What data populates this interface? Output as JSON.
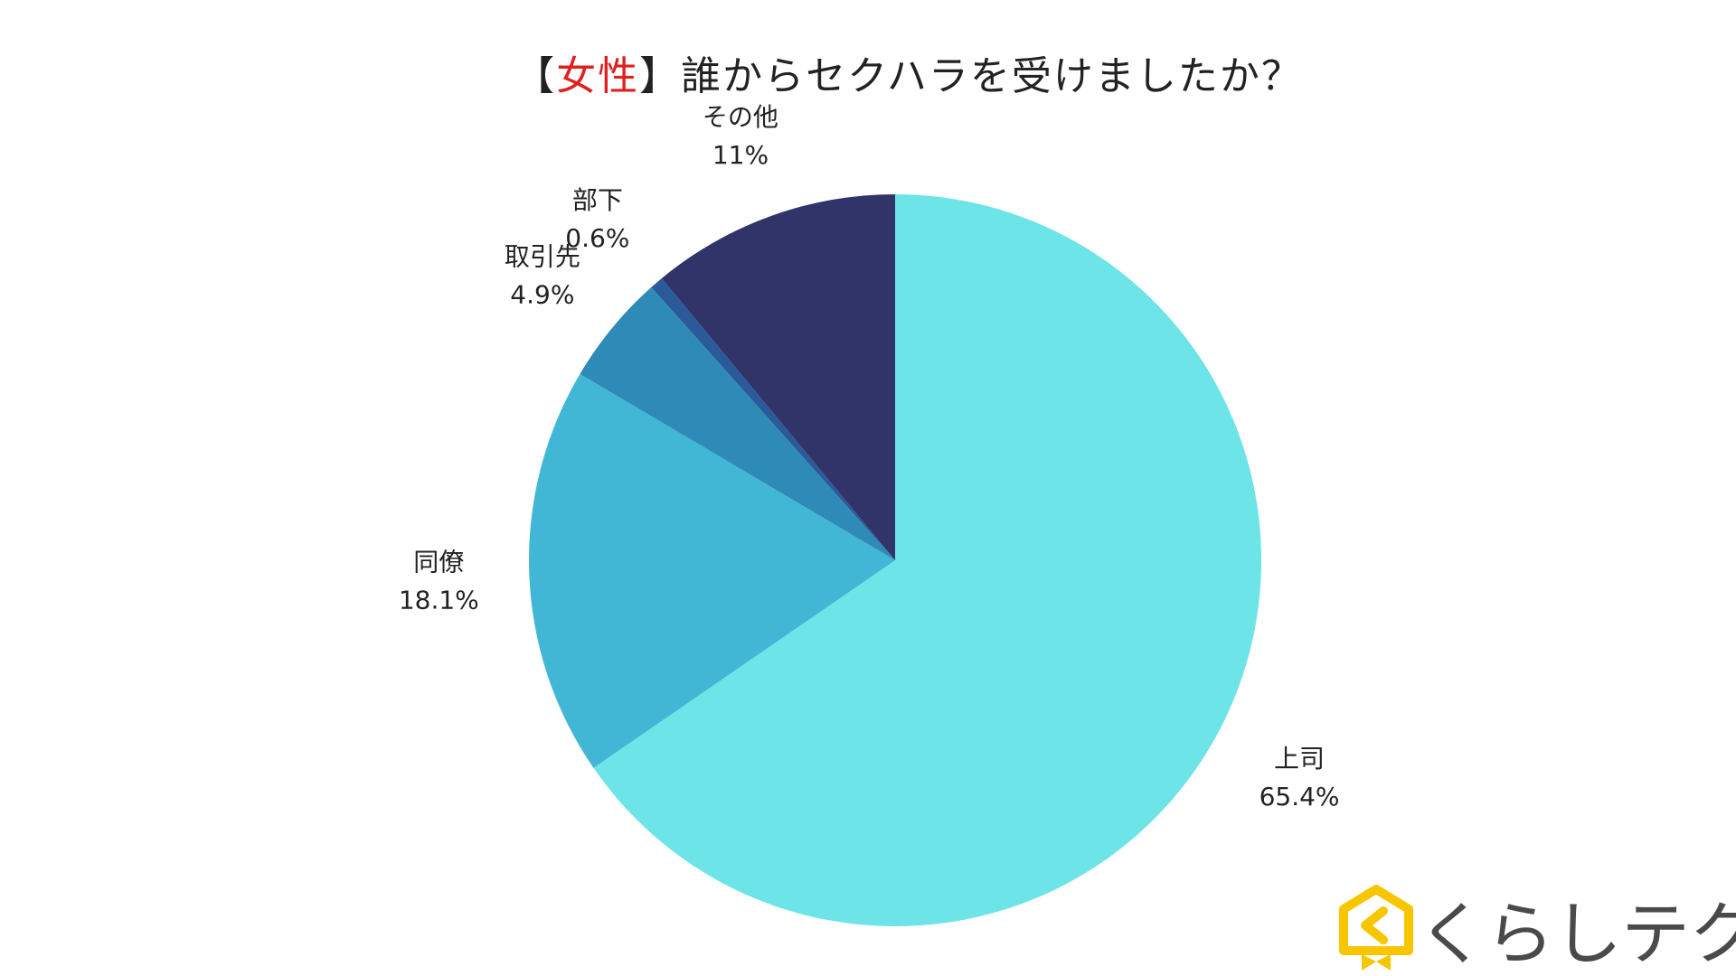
{
  "title": {
    "open_bracket": "【",
    "accent": "女性",
    "rest": "】誰からセクハラを受けましたか？"
  },
  "chart_data": {
    "type": "pie",
    "title": "【女性】誰からセクハラを受けましたか？",
    "unit": "%",
    "slices": [
      {
        "label": "上司",
        "value": 65.4,
        "value_text": "65.4%",
        "color": "#6ce4e8"
      },
      {
        "label": "同僚",
        "value": 18.1,
        "value_text": "18.1%",
        "color": "#42b7d5"
      },
      {
        "label": "取引先",
        "value": 4.9,
        "value_text": "4.9%",
        "color": "#2e8bb8"
      },
      {
        "label": "部下",
        "value": 0.6,
        "value_text": "0.6%",
        "color": "#2b5a9a"
      },
      {
        "label": "その他",
        "value": 11,
        "value_text": "11%",
        "color": "#303468"
      }
    ],
    "start": "12 o'clock",
    "direction": "clockwise",
    "legend": "none"
  },
  "logo": {
    "text": "くらしテク",
    "mark_color": "#f7c600",
    "text_color": "#4a4a4a"
  }
}
